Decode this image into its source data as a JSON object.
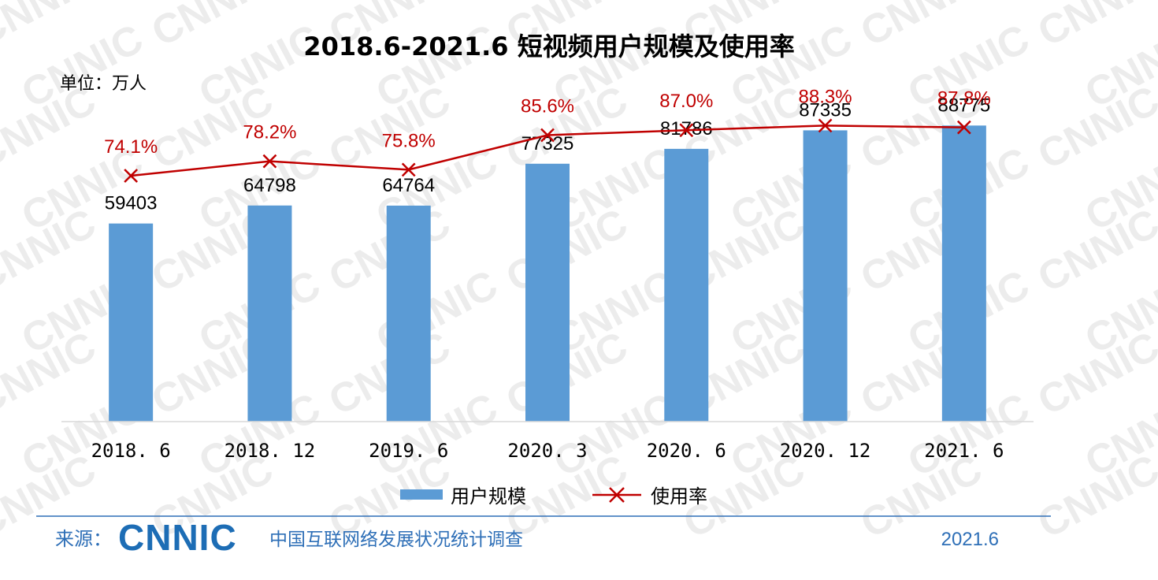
{
  "chart_data": {
    "type": "bar",
    "title": "2018.6-2021.6 短视频用户规模及使用率",
    "unit_label": "单位：万人",
    "categories": [
      "2018. 6",
      "2018. 12",
      "2019. 6",
      "2020. 3",
      "2020. 6",
      "2020. 12",
      "2021. 6"
    ],
    "series": [
      {
        "name": "用户规模",
        "kind": "bar",
        "color": "#5b9bd5",
        "values": [
          59403,
          64798,
          64764,
          77325,
          81786,
          87335,
          88775
        ]
      },
      {
        "name": "使用率",
        "kind": "line",
        "marker": "x",
        "color": "#c00000",
        "values": [
          74.1,
          78.2,
          75.8,
          85.6,
          87.0,
          88.3,
          87.8
        ],
        "labels": [
          "74.1%",
          "78.2%",
          "75.8%",
          "85.6%",
          "87.0%",
          "88.3%",
          "87.8%"
        ]
      }
    ],
    "bar_labels": [
      "59403",
      "64798",
      "64764",
      "77325",
      "81786",
      "87335",
      "88775"
    ],
    "legend_position": "bottom",
    "grid": false
  },
  "watermark": "CNNIC",
  "footer": {
    "source_label": "来源：",
    "logo": "CNNIC",
    "organization": "中国互联网络发展状况统计调查",
    "date": "2021.6",
    "accent_color": "#2e6fb7"
  }
}
